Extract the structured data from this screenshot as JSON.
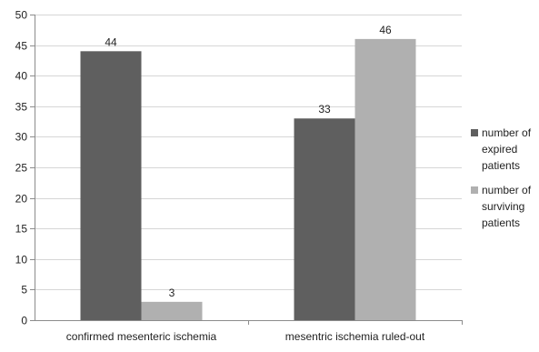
{
  "chart_data": {
    "type": "bar",
    "title": "",
    "xlabel": "",
    "ylabel": "",
    "categories": [
      "confirmed mesenteric ischemia",
      "mesentric ischemia ruled-out"
    ],
    "series": [
      {
        "name": "number of expired patients",
        "legend_lines": [
          "number of",
          "expired",
          "patients"
        ],
        "values": [
          44,
          33
        ],
        "color": "#5f5f5f"
      },
      {
        "name": "number of surviving patients",
        "legend_lines": [
          "number of",
          "surviving",
          "patients"
        ],
        "values": [
          3,
          46
        ],
        "color": "#b0b0b0"
      }
    ],
    "ylim": [
      0,
      50
    ],
    "yticks": [
      0,
      5,
      10,
      15,
      20,
      25,
      30,
      35,
      40,
      45,
      50
    ],
    "grid": true,
    "legend_position": "right",
    "data_labels": true
  }
}
